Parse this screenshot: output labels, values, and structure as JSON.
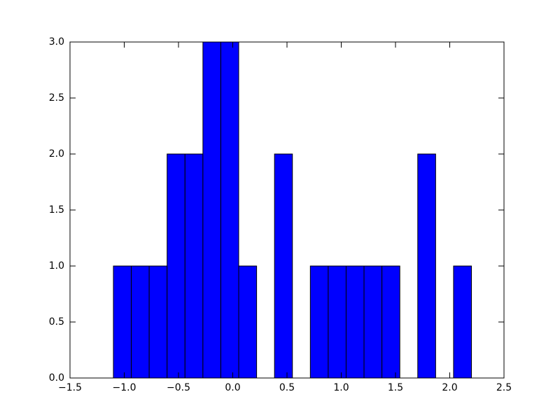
{
  "chart_data": {
    "type": "histogram",
    "color": "#0000ff",
    "bins": [
      -1.1,
      -0.935,
      -0.77,
      -0.605,
      -0.44,
      -0.275,
      -0.11,
      0.055,
      0.22,
      0.385,
      0.55,
      0.715,
      0.88,
      1.045,
      1.21,
      1.375,
      1.54,
      1.705,
      1.87,
      2.035,
      2.2
    ],
    "values": [
      1,
      1,
      1,
      2,
      2,
      3,
      3,
      1,
      0,
      2,
      0,
      1,
      1,
      1,
      1,
      1,
      0,
      2,
      0,
      1
    ],
    "xlim": [
      -1.5,
      2.5
    ],
    "xticks": [
      {
        "value": -1.5,
        "label": "−1.5"
      },
      {
        "value": -1.0,
        "label": "−1.0"
      },
      {
        "value": -0.5,
        "label": "−0.5"
      },
      {
        "value": 0,
        "label": "0.0"
      },
      {
        "value": 0.5,
        "label": "0.5"
      },
      {
        "value": 1.0,
        "label": "1.0"
      },
      {
        "value": 1.5,
        "label": "1.5"
      },
      {
        "value": 2.0,
        "label": "2.0"
      },
      {
        "value": 2.5,
        "label": "2.5"
      }
    ],
    "ylim": [
      0,
      3
    ],
    "yticks": [
      {
        "value": 0,
        "label": "0.0"
      },
      {
        "value": 0.5,
        "label": "0.5"
      },
      {
        "value": 1.0,
        "label": "1.0"
      },
      {
        "value": 1.5,
        "label": "1.5"
      },
      {
        "value": 2.0,
        "label": "2.0"
      },
      {
        "value": 2.5,
        "label": "2.5"
      },
      {
        "value": 3.0,
        "label": "3.0"
      }
    ]
  }
}
